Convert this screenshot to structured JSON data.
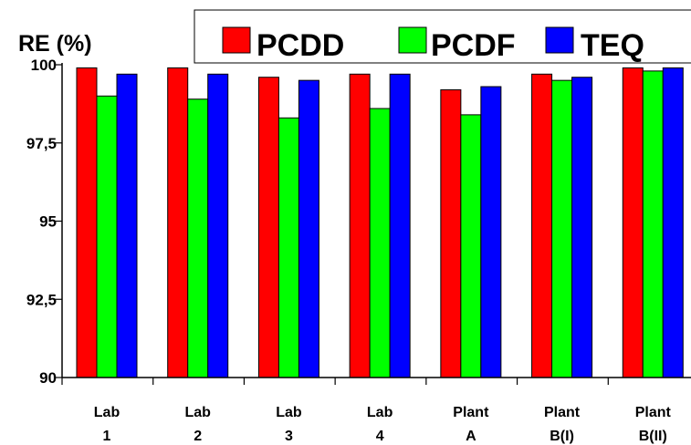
{
  "chart_data": {
    "type": "bar",
    "ylabel": "RE (%)",
    "ylim": [
      90,
      100
    ],
    "yticks": [
      "90",
      "92,5",
      "95",
      "97,5",
      "100"
    ],
    "ytick_values": [
      90,
      92.5,
      95,
      97.5,
      100
    ],
    "categories": [
      [
        "Lab",
        "1"
      ],
      [
        "Lab",
        "2"
      ],
      [
        "Lab",
        "3"
      ],
      [
        "Lab",
        "4"
      ],
      [
        "Plant",
        "A"
      ],
      [
        "Plant",
        "B(I)"
      ],
      [
        "Plant",
        "B(II)"
      ]
    ],
    "series": [
      {
        "name": "PCDD",
        "color": "#ff0000",
        "values": [
          99.9,
          99.9,
          99.6,
          99.7,
          99.2,
          99.7,
          99.9
        ]
      },
      {
        "name": "PCDF",
        "color": "#00ff00",
        "values": [
          99.0,
          98.9,
          98.3,
          98.6,
          98.4,
          99.5,
          99.8
        ]
      },
      {
        "name": "TEQ",
        "color": "#0000ff",
        "values": [
          99.7,
          99.7,
          99.5,
          99.7,
          99.3,
          99.6,
          99.9
        ]
      }
    ],
    "legend_position": "top-right",
    "grid": false
  }
}
